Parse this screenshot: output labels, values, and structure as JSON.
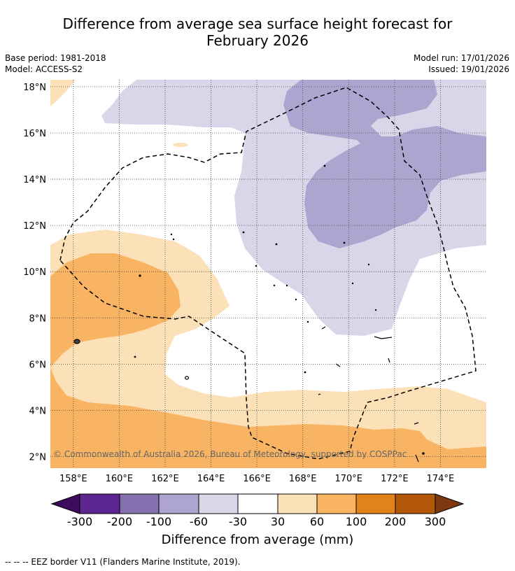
{
  "title_line1": "Difference from average sea surface height forecast for",
  "title_line2": "February 2026",
  "base_period": "Base period: 1981-2018",
  "model": "Model: ACCESS-S2",
  "model_run": "Model run: 17/01/2026",
  "issued": "Issued: 19/01/2026",
  "copyright": "© Commonwealth of Australia 2026, Bureau of Meteorology, supported by COSPPac",
  "colorbar_label": "Difference from average (mm)",
  "footnote": "--  --  -- EEZ border V11 (Flanders Marine Institute, 2019).",
  "colors": {
    "land_outline": "#000000",
    "grid": "#444444",
    "bins": [
      "#3d0a5e",
      "#5c2590",
      "#8472b0",
      "#ada4d0",
      "#d8d7ea",
      "#ffffff",
      "#fce1b8",
      "#f9b463",
      "#e2821b",
      "#b35808",
      "#7c3a0e"
    ]
  },
  "chart_data": {
    "type": "map",
    "region": "Western Pacific",
    "lon_range": [
      157,
      176
    ],
    "lat_range": [
      1.5,
      18.3
    ],
    "lon_ticks": [
      "158°E",
      "160°E",
      "162°E",
      "164°E",
      "166°E",
      "168°E",
      "170°E",
      "172°E",
      "174°E"
    ],
    "lat_ticks": [
      "2°N",
      "4°N",
      "6°N",
      "8°N",
      "10°N",
      "12°N",
      "14°N",
      "16°N",
      "18°N"
    ],
    "lon_tick_values": [
      158,
      160,
      162,
      164,
      166,
      168,
      170,
      172,
      174
    ],
    "lat_tick_values": [
      2,
      4,
      6,
      8,
      10,
      12,
      14,
      16,
      18
    ],
    "colorbar_levels": [
      "-300",
      "-200",
      "-100",
      "-60",
      "-30",
      "30",
      "60",
      "100",
      "200",
      "300"
    ],
    "colorbar_level_values": [
      -300,
      -200,
      -100,
      -60,
      -30,
      30,
      60,
      100,
      200,
      300
    ],
    "colorbar_extends": "both",
    "eez_border_style": "dashed"
  }
}
